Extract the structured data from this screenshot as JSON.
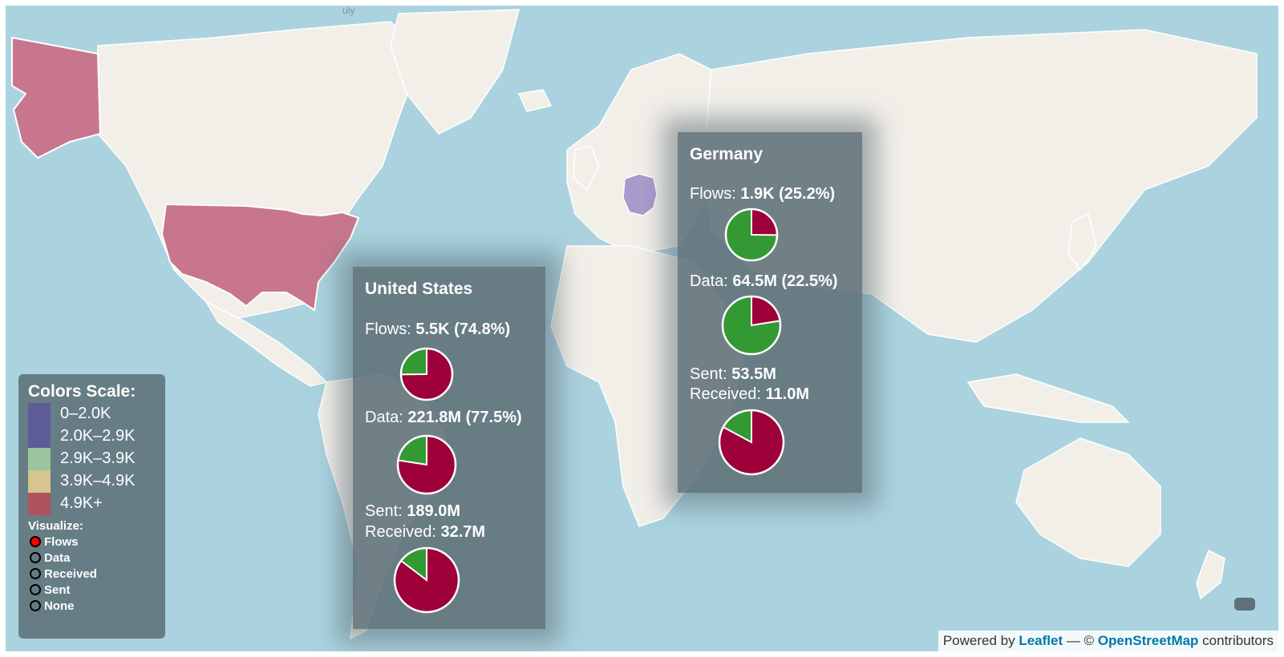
{
  "colors": {
    "ocean": "#aad3df",
    "land": "#f2efe9",
    "us_fill": "#c8768e",
    "germany_fill": "#a99bcb",
    "pie_primary": "#9e003a",
    "pie_rest": "#339933"
  },
  "top_label": "uly",
  "legend": {
    "title": "Colors Scale:",
    "scale": [
      {
        "label": "0–2.0K",
        "color": "#5e5b99"
      },
      {
        "label": "2.0K–2.9K",
        "color": "#5e5b99"
      },
      {
        "label": "2.9K–3.9K",
        "color": "#9bc59d"
      },
      {
        "label": "3.9K–4.9K",
        "color": "#d4c68e"
      },
      {
        "label": "4.9K+",
        "color": "#b1525f"
      }
    ],
    "visualize_title": "Visualize:",
    "options": [
      {
        "label": "Flows",
        "selected": true
      },
      {
        "label": "Data",
        "selected": false
      },
      {
        "label": "Received",
        "selected": false
      },
      {
        "label": "Sent",
        "selected": false
      },
      {
        "label": "None",
        "selected": false
      }
    ]
  },
  "panels": {
    "us": {
      "country": "United States",
      "flows_label": "Flows: ",
      "flows_value": "5.5K (74.8%)",
      "flows_share": 0.748,
      "data_label": "Data: ",
      "data_value": "221.8M (77.5%)",
      "data_share": 0.775,
      "sent_label": "Sent: ",
      "sent_value": "189.0M",
      "received_label": "Received: ",
      "received_value": "32.7M",
      "sent_share": 0.853
    },
    "de": {
      "country": "Germany",
      "flows_label": "Flows: ",
      "flows_value": "1.9K (25.2%)",
      "flows_share": 0.252,
      "data_label": "Data: ",
      "data_value": "64.5M (22.5%)",
      "data_share": 0.225,
      "sent_label": "Sent: ",
      "sent_value": "53.5M",
      "received_label": "Received: ",
      "received_value": "11.0M",
      "sent_share": 0.829
    }
  },
  "attribution": {
    "prefix": "Powered by ",
    "leaflet": "Leaflet",
    "middle": " — © ",
    "osm": "OpenStreetMap",
    "suffix": " contributors"
  }
}
